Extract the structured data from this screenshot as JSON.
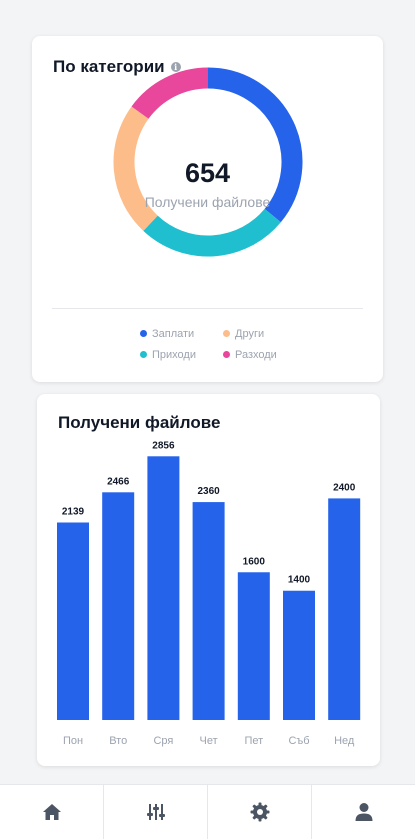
{
  "colors": {
    "primary": "#2563eb",
    "teal": "#1fbfcf",
    "peach": "#fdbd8a",
    "pink": "#e8479c",
    "icon": "#4b5563"
  },
  "categories": {
    "title": "По категории",
    "info_icon": "info-icon",
    "total": "654",
    "caption": "Получени файлове",
    "segments": [
      {
        "name": "Заплати",
        "percent": 36,
        "color": "#2563eb"
      },
      {
        "name": "Приходи",
        "percent": 26,
        "color": "#1fbfcf"
      },
      {
        "name": "Други",
        "percent": 23,
        "color": "#fdbd8a"
      },
      {
        "name": "Разходи",
        "percent": 15,
        "color": "#e8479c"
      }
    ],
    "legend": [
      {
        "label": "Заплати",
        "color": "#2563eb"
      },
      {
        "label": "Други",
        "color": "#fdbd8a"
      },
      {
        "label": "Приходи",
        "color": "#1fbfcf"
      },
      {
        "label": "Разходи",
        "color": "#e8479c"
      }
    ]
  },
  "files": {
    "title": "Получени файлове"
  },
  "chart_data": {
    "type": "bar",
    "title": "Получени файлове",
    "categories": [
      "Пон",
      "Вто",
      "Сря",
      "Чет",
      "Пет",
      "Съб",
      "Нед"
    ],
    "values": [
      2139,
      2466,
      2856,
      2360,
      1600,
      1400,
      2400
    ],
    "ylim": [
      0,
      3000
    ],
    "grid": false,
    "color": "#2563eb"
  },
  "nav": {
    "items": [
      {
        "icon": "home-icon"
      },
      {
        "icon": "sliders-icon"
      },
      {
        "icon": "gear-icon"
      },
      {
        "icon": "user-icon"
      }
    ]
  }
}
